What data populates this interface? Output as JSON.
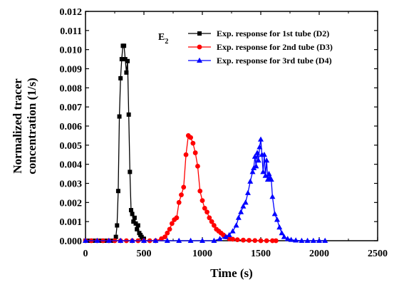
{
  "chart_data": {
    "type": "line",
    "xlabel": "Time (s)",
    "ylabel_lines": [
      "Normalized tracer",
      "concentration (1/s)"
    ],
    "xlim": [
      0,
      2500
    ],
    "ylim": [
      0,
      0.012
    ],
    "xticks": [
      0,
      500,
      1000,
      1500,
      2000,
      2500
    ],
    "xtick_labels": [
      "0",
      "500",
      "1000",
      "1500",
      "2000",
      "2500"
    ],
    "yticks": [
      0.0,
      0.001,
      0.002,
      0.003,
      0.004,
      0.005,
      0.006,
      0.007,
      0.008,
      0.009,
      0.01,
      0.011,
      0.012
    ],
    "ytick_labels": [
      "0.000",
      "0.001",
      "0.002",
      "0.003",
      "0.004",
      "0.005",
      "0.006",
      "0.007",
      "0.008",
      "0.009",
      "0.010",
      "0.011",
      "0.012"
    ],
    "annotation": {
      "base": "E",
      "sub": "2"
    },
    "grid": false,
    "legend_position": "top-right",
    "series": [
      {
        "name": "Exp. response for 1st tube (D2)",
        "color": "#000000",
        "marker": "square",
        "x": [
          0,
          30,
          60,
          90,
          120,
          150,
          180,
          210,
          240,
          260,
          270,
          280,
          290,
          300,
          310,
          320,
          330,
          340,
          350,
          360,
          370,
          380,
          390,
          400,
          410,
          420,
          430,
          440,
          450,
          460,
          470,
          480,
          490,
          500
        ],
        "y": [
          0,
          0,
          0,
          0,
          0,
          0,
          0,
          0,
          0,
          0.0002,
          0.0008,
          0.0026,
          0.0065,
          0.0085,
          0.0095,
          0.0102,
          0.0102,
          0.0095,
          0.0088,
          0.0094,
          0.0066,
          0.0036,
          0.0016,
          0.0014,
          0.001,
          0.0012,
          0.0009,
          0.0006,
          0.0008,
          0.0004,
          0.0003,
          0.0002,
          0.0001,
          0.0001
        ]
      },
      {
        "name": "Exp. response for 2nd tube (D3)",
        "color": "#ff0000",
        "marker": "circle",
        "x": [
          0,
          50,
          100,
          150,
          200,
          250,
          300,
          350,
          400,
          450,
          500,
          550,
          600,
          650,
          680,
          700,
          720,
          740,
          760,
          780,
          800,
          820,
          840,
          860,
          880,
          900,
          920,
          940,
          960,
          980,
          1000,
          1020,
          1040,
          1060,
          1080,
          1100,
          1120,
          1140,
          1160,
          1180,
          1200,
          1230,
          1260,
          1300,
          1350,
          1400,
          1450,
          1500,
          1550,
          1600,
          1630
        ],
        "y": [
          0,
          0,
          0,
          0,
          0,
          0,
          0,
          0,
          0,
          0,
          0,
          0,
          0,
          0.0001,
          0.0002,
          0.0004,
          0.0006,
          0.0009,
          0.0011,
          0.0012,
          0.002,
          0.0024,
          0.0028,
          0.0045,
          0.0055,
          0.0054,
          0.0051,
          0.0046,
          0.0039,
          0.0026,
          0.0021,
          0.0017,
          0.0015,
          0.0012,
          0.001,
          0.0008,
          0.0006,
          0.0005,
          0.0004,
          0.0003,
          0.0002,
          0.0001,
          8e-05,
          5e-05,
          3e-05,
          2e-05,
          1e-05,
          0,
          0,
          0,
          0
        ]
      },
      {
        "name": "Exp. response for 3rd tube (D4)",
        "color": "#0000ff",
        "marker": "triangle",
        "x": [
          0,
          100,
          200,
          300,
          400,
          500,
          600,
          700,
          800,
          900,
          1000,
          1100,
          1150,
          1200,
          1230,
          1260,
          1290,
          1310,
          1330,
          1350,
          1370,
          1390,
          1410,
          1430,
          1440,
          1450,
          1460,
          1470,
          1480,
          1490,
          1500,
          1510,
          1520,
          1530,
          1540,
          1550,
          1560,
          1570,
          1580,
          1590,
          1600,
          1620,
          1640,
          1660,
          1680,
          1700,
          1730,
          1760,
          1800,
          1850,
          1900,
          1950,
          2000,
          2050
        ],
        "y": [
          0,
          0,
          0,
          0,
          0,
          0,
          0,
          0,
          0,
          0,
          0,
          0,
          0.0001,
          0.0002,
          0.0003,
          0.0005,
          0.0008,
          0.0012,
          0.0015,
          0.0018,
          0.002,
          0.0025,
          0.0031,
          0.0036,
          0.0038,
          0.0044,
          0.0039,
          0.0046,
          0.0042,
          0.0049,
          0.0053,
          0.0045,
          0.0036,
          0.0045,
          0.0034,
          0.0042,
          0.0032,
          0.0035,
          0.0033,
          0.0032,
          0.0023,
          0.0014,
          0.0011,
          0.0007,
          0.0004,
          0.0002,
          0.0001,
          5e-05,
          2e-05,
          0,
          0,
          0,
          0,
          0
        ]
      }
    ]
  }
}
